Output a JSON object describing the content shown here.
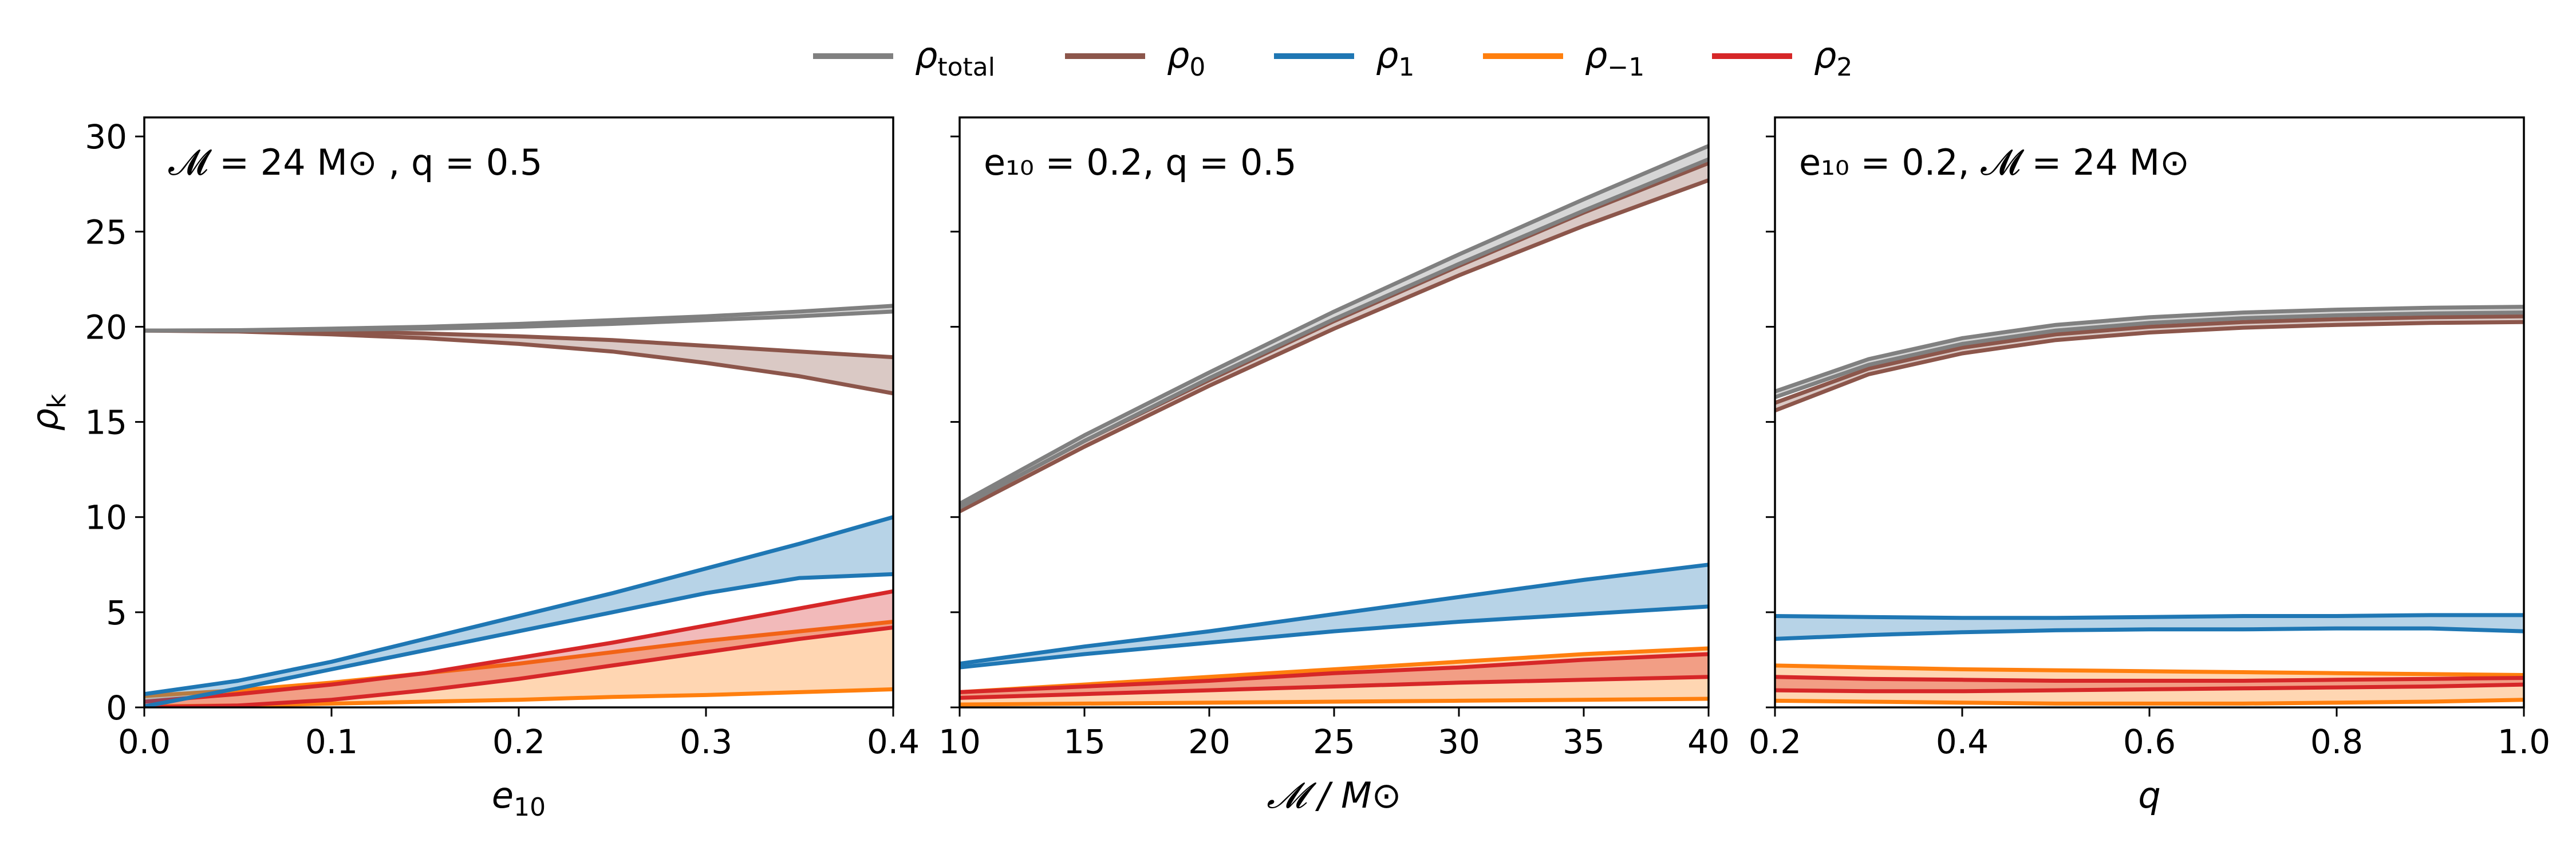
{
  "legend": {
    "placement": "top-center",
    "entries": [
      {
        "key": "total",
        "symbol": "ρ",
        "subscript": "total",
        "color": "#808080"
      },
      {
        "key": "k0",
        "symbol": "ρ",
        "subscript": "0",
        "color": "#8c564b"
      },
      {
        "key": "k1",
        "symbol": "ρ",
        "subscript": "1",
        "color": "#1f77b4"
      },
      {
        "key": "km1",
        "symbol": "ρ",
        "subscript": "−1",
        "color": "#ff7f0e"
      },
      {
        "key": "k2",
        "symbol": "ρ",
        "subscript": "2",
        "color": "#d62728"
      }
    ]
  },
  "chart_data": [
    {
      "type": "line",
      "ylabel": {
        "symbol": "ρ",
        "subscript": "k"
      },
      "xlabel": {
        "main": "e",
        "subscript": "10"
      },
      "annotation": "𝓜 = 24 M⊙ , q = 0.5",
      "xlim": [
        0.0,
        0.4
      ],
      "ylim": [
        0,
        31
      ],
      "xticks": [
        "0.0",
        "0.1",
        "0.2",
        "0.3",
        "0.4"
      ],
      "yticks": [
        "0",
        "5",
        "10",
        "15",
        "20",
        "25",
        "30"
      ],
      "x": [
        0.0,
        0.05,
        0.1,
        0.15,
        0.2,
        0.25,
        0.3,
        0.35,
        0.4
      ],
      "series": [
        {
          "key": "total",
          "lower": [
            19.8,
            19.8,
            19.85,
            19.9,
            20.0,
            20.15,
            20.35,
            20.55,
            20.8
          ],
          "upper": [
            19.8,
            19.82,
            19.9,
            20.0,
            20.15,
            20.35,
            20.55,
            20.8,
            21.1
          ]
        },
        {
          "key": "k0",
          "lower": [
            19.8,
            19.75,
            19.6,
            19.4,
            19.1,
            18.7,
            18.1,
            17.4,
            16.5
          ],
          "upper": [
            19.8,
            19.78,
            19.75,
            19.65,
            19.5,
            19.3,
            19.0,
            18.7,
            18.4
          ]
        },
        {
          "key": "k1",
          "lower": [
            0.05,
            1.0,
            2.0,
            3.0,
            4.0,
            5.0,
            6.0,
            6.8,
            7.0
          ],
          "upper": [
            0.7,
            1.4,
            2.4,
            3.6,
            4.8,
            6.0,
            7.3,
            8.6,
            10.0
          ]
        },
        {
          "key": "km1",
          "lower": [
            0.05,
            0.1,
            0.2,
            0.3,
            0.4,
            0.55,
            0.65,
            0.8,
            0.95
          ],
          "upper": [
            0.6,
            0.9,
            1.3,
            1.8,
            2.3,
            2.9,
            3.5,
            4.0,
            4.5
          ]
        },
        {
          "key": "k2",
          "lower": [
            0.0,
            0.1,
            0.4,
            0.9,
            1.5,
            2.2,
            2.9,
            3.6,
            4.2
          ],
          "upper": [
            0.3,
            0.7,
            1.2,
            1.8,
            2.6,
            3.4,
            4.3,
            5.2,
            6.1
          ]
        }
      ]
    },
    {
      "type": "line",
      "xlabel": {
        "main": "𝓜 / M⊙"
      },
      "annotation": "e₁₀ = 0.2, q = 0.5",
      "xlim": [
        10,
        40
      ],
      "ylim": [
        0,
        31
      ],
      "xticks": [
        "10",
        "15",
        "20",
        "25",
        "30",
        "35",
        "40"
      ],
      "x": [
        10,
        15,
        20,
        25,
        30,
        35,
        40
      ],
      "series": [
        {
          "key": "total",
          "lower": [
            10.5,
            14.0,
            17.3,
            20.4,
            23.3,
            26.1,
            28.8
          ],
          "upper": [
            10.7,
            14.3,
            17.6,
            20.8,
            23.8,
            26.7,
            29.5
          ]
        },
        {
          "key": "k0",
          "lower": [
            10.3,
            13.7,
            16.9,
            19.9,
            22.7,
            25.3,
            27.7
          ],
          "upper": [
            10.5,
            14.0,
            17.2,
            20.3,
            23.2,
            26.0,
            28.6
          ]
        },
        {
          "key": "k1",
          "lower": [
            2.1,
            2.8,
            3.4,
            4.0,
            4.5,
            4.9,
            5.3
          ],
          "upper": [
            2.3,
            3.2,
            4.0,
            4.9,
            5.8,
            6.7,
            7.5
          ]
        },
        {
          "key": "km1",
          "lower": [
            0.15,
            0.2,
            0.25,
            0.3,
            0.35,
            0.4,
            0.45
          ],
          "upper": [
            0.8,
            1.2,
            1.6,
            2.0,
            2.4,
            2.8,
            3.1
          ]
        },
        {
          "key": "k2",
          "lower": [
            0.5,
            0.7,
            0.9,
            1.1,
            1.3,
            1.45,
            1.6
          ],
          "upper": [
            0.8,
            1.1,
            1.4,
            1.8,
            2.1,
            2.5,
            2.8
          ]
        }
      ]
    },
    {
      "type": "line",
      "xlabel": {
        "main": "q"
      },
      "annotation": "e₁₀ = 0.2, 𝓜 = 24 M⊙",
      "xlim": [
        0.2,
        1.0
      ],
      "ylim": [
        0,
        31
      ],
      "xticks": [
        "0.2",
        "0.4",
        "0.6",
        "0.8",
        "1.0"
      ],
      "x": [
        0.2,
        0.3,
        0.4,
        0.5,
        0.6,
        0.7,
        0.8,
        0.9,
        1.0
      ],
      "series": [
        {
          "key": "total",
          "lower": [
            16.3,
            18.0,
            19.1,
            19.8,
            20.2,
            20.45,
            20.6,
            20.7,
            20.75
          ],
          "upper": [
            16.6,
            18.3,
            19.4,
            20.1,
            20.5,
            20.75,
            20.9,
            21.0,
            21.05
          ]
        },
        {
          "key": "k0",
          "lower": [
            15.6,
            17.5,
            18.6,
            19.3,
            19.7,
            19.95,
            20.1,
            20.2,
            20.25
          ],
          "upper": [
            16.0,
            17.8,
            18.9,
            19.6,
            20.0,
            20.25,
            20.4,
            20.5,
            20.55
          ]
        },
        {
          "key": "k1",
          "lower": [
            3.6,
            3.8,
            3.95,
            4.05,
            4.1,
            4.1,
            4.15,
            4.15,
            4.0
          ],
          "upper": [
            4.8,
            4.75,
            4.7,
            4.7,
            4.75,
            4.8,
            4.8,
            4.85,
            4.85
          ]
        },
        {
          "key": "km1",
          "lower": [
            0.35,
            0.3,
            0.25,
            0.2,
            0.2,
            0.2,
            0.25,
            0.3,
            0.4
          ],
          "upper": [
            2.2,
            2.1,
            2.0,
            1.95,
            1.9,
            1.85,
            1.8,
            1.75,
            1.7
          ]
        },
        {
          "key": "k2",
          "lower": [
            0.9,
            0.85,
            0.85,
            0.9,
            0.95,
            1.0,
            1.05,
            1.1,
            1.2
          ],
          "upper": [
            1.6,
            1.5,
            1.45,
            1.4,
            1.4,
            1.4,
            1.45,
            1.5,
            1.55
          ]
        }
      ]
    }
  ]
}
